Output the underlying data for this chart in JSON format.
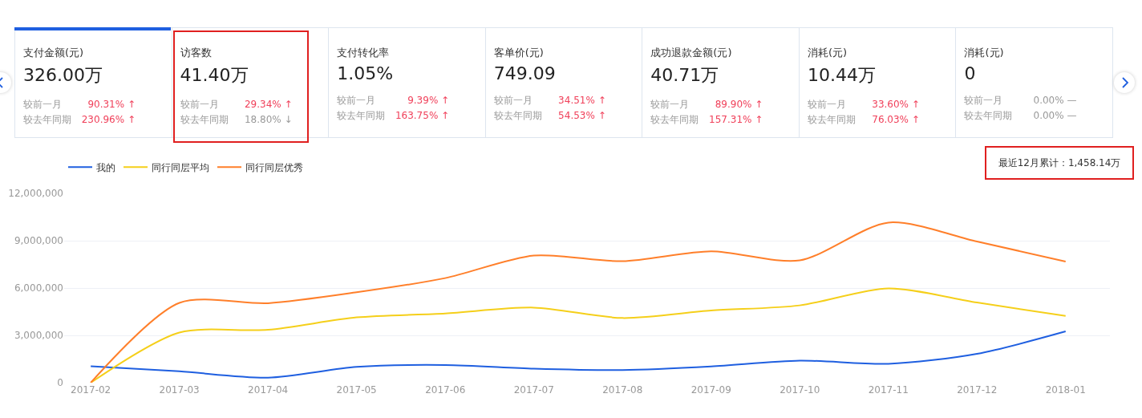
{
  "chart_data": [
    {
      "type": "other",
      "annotations": [
        "支付金额(元)",
        "326.00万",
        "较前一月",
        "90.31% ↑",
        "较去年同期",
        "230.96% ↑",
        "访客数",
        "41.40万",
        "较前一月",
        "29.34% ↑",
        "较去年同期",
        "18.80% ↓",
        "支付转化率",
        "1.05%",
        "较前一月",
        "9.39% ↑",
        "较去年同期",
        "163.75% ↑",
        "客单价(元)",
        "749.09",
        "较前一月",
        "34.51% ↑",
        "较去年同期",
        "54.53% ↑",
        "成功退款金额(元)",
        "40.71万",
        "较前一月",
        "89.90% ↑",
        "较去年同期",
        "157.31% ↑",
        "消耗(元)",
        "10.44万",
        "较前一月",
        "33.60% ↑",
        "较去年同期",
        "76.03% ↑",
        "消耗(元)",
        "0",
        "较前一月",
        "0.00% —",
        "较去年同期",
        "0.00% —"
      ]
    },
    {
      "type": "line",
      "categories": [
        "2017-02",
        "2017-03",
        "2017-04",
        "2017-05",
        "2017-06",
        "2017-07",
        "2017-08",
        "2017-09",
        "2017-10",
        "2017-11",
        "2017-12",
        "2018-01"
      ],
      "series": [
        {
          "name": "我的",
          "color": "#1f5fe0",
          "values": [
            1040000,
            720000,
            320000,
            1000000,
            1120000,
            890000,
            800000,
            1030000,
            1400000,
            1200000,
            1830000,
            3250000
          ]
        },
        {
          "name": "同行同层平均",
          "color": "#f5cf1a",
          "values": [
            0,
            3180000,
            3350000,
            4140000,
            4390000,
            4760000,
            4100000,
            4570000,
            4900000,
            5980000,
            5080000,
            4230000
          ]
        },
        {
          "name": "同行同层优秀",
          "color": "#ff7f2a",
          "values": [
            0,
            5060000,
            5040000,
            5730000,
            6630000,
            8060000,
            7700000,
            8330000,
            7750000,
            10150000,
            8950000,
            7680000
          ]
        }
      ],
      "ylim": [
        0,
        12000000
      ],
      "yticks": [
        {
          "value": 0,
          "label": "0"
        },
        {
          "value": 3000000,
          "label": "3,000,000"
        },
        {
          "value": 6000000,
          "label": "6,000,000"
        },
        {
          "value": 9000000,
          "label": "9,000,000"
        },
        {
          "value": 12000000,
          "label": "12,000,000"
        }
      ],
      "grid": "y",
      "legend": "top left",
      "annotations": [
        "最近12月累计：1,458.14万"
      ]
    }
  ]
}
